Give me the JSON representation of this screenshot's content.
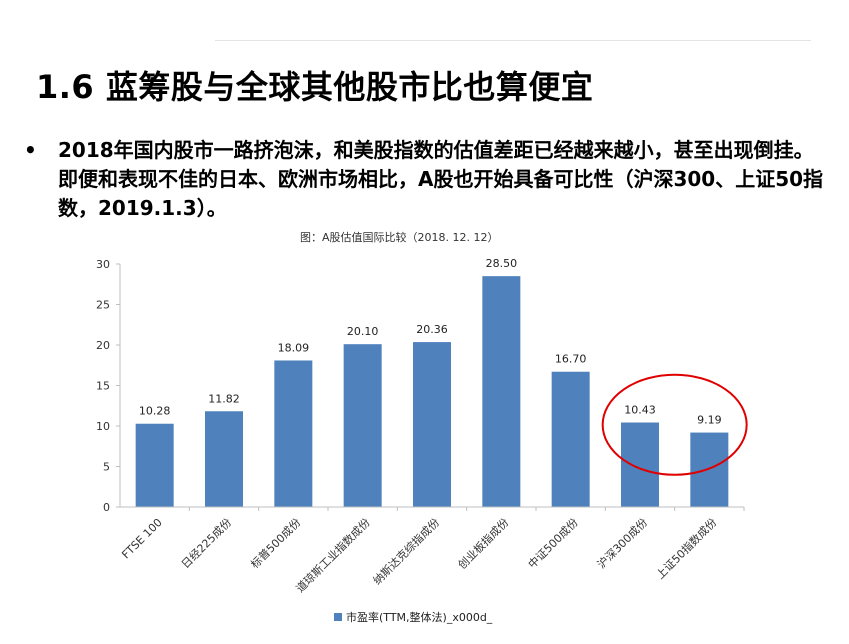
{
  "slide": {
    "title": "1.6  蓝筹股与全球其他股市比也算便宜",
    "bullet": "•",
    "body": "2018年国内股市一路挤泡沫，和美股指数的估值差距已经越来越小，甚至出现倒挂。即便和表现不佳的日本、欧洲市场相比，A股也开始具备可比性（沪深300、上证50指数，2019.1.3）。"
  },
  "chart_data": {
    "type": "bar",
    "title": "图：A股估值国际比较（2018. 12. 12）",
    "categories": [
      "FTSE 100",
      "日经225成份",
      "标普500成份",
      "道琼斯工业指数成份",
      "纳斯达克综指成份",
      "创业板指成份",
      "中证500成份",
      "沪深300成份",
      "上证50指数成份"
    ],
    "series": [
      {
        "name": "市盈率(TTM,整体法)_x000d_",
        "values": [
          10.28,
          11.82,
          18.09,
          20.1,
          20.36,
          28.5,
          16.7,
          10.43,
          9.19
        ]
      }
    ],
    "value_labels": [
      "10.28",
      "11.82",
      "18.09",
      "20.10",
      "20.36",
      "28.50",
      "16.70",
      "10.43",
      "9.19"
    ],
    "yticks": [
      "0",
      "5",
      "10",
      "15",
      "20",
      "25",
      "30"
    ],
    "ylim": [
      0,
      30
    ],
    "grid": false,
    "legend_position": "bottom",
    "bar_color": "#4f81bd",
    "highlight": {
      "indices": [
        7,
        8
      ],
      "shape": "ellipse",
      "color": "#e00000"
    }
  }
}
